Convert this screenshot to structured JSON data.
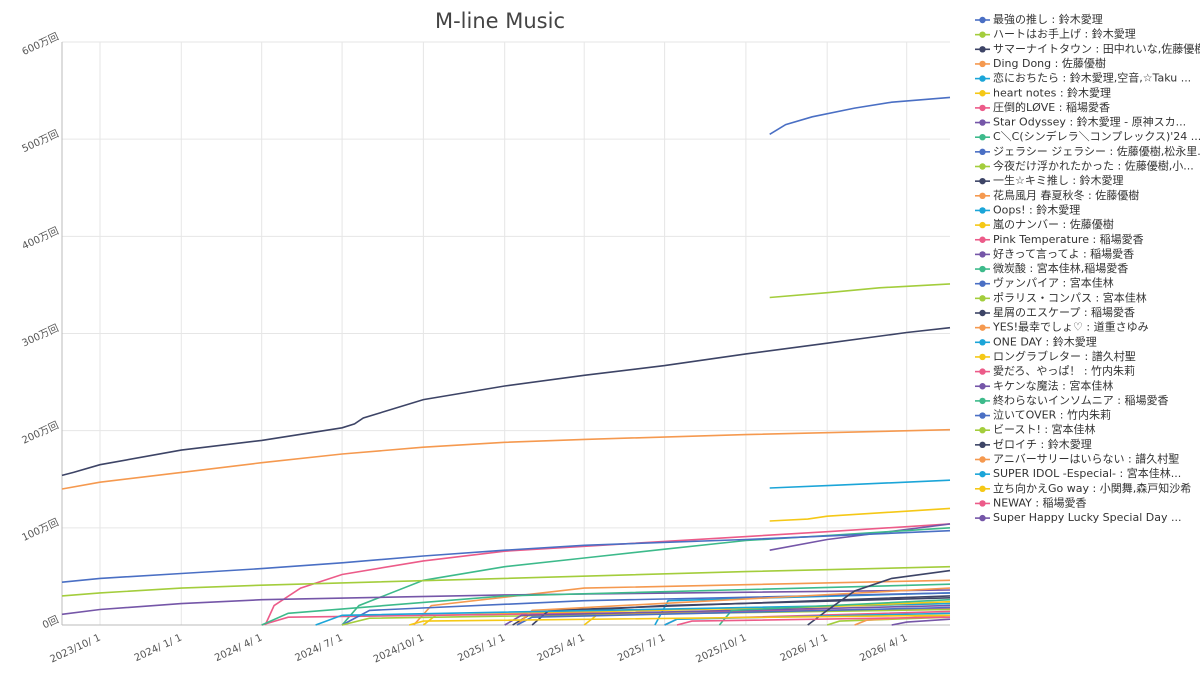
{
  "chart_data": {
    "type": "line",
    "title": "M-line Music",
    "xlim": [
      "2023-08-19",
      "2026-05-20"
    ],
    "xticks": [
      {
        "value": "2023-10-01",
        "label": "2023/10/ 1"
      },
      {
        "value": "2024-01-01",
        "label": "2024/ 1/ 1"
      },
      {
        "value": "2024-04-01",
        "label": "2024/ 4/ 1"
      },
      {
        "value": "2024-07-01",
        "label": "2024/ 7/ 1"
      },
      {
        "value": "2024-10-01",
        "label": "2024/10/ 1"
      },
      {
        "value": "2025-01-01",
        "label": "2025/ 1/ 1"
      },
      {
        "value": "2025-04-01",
        "label": "2025/ 4/ 1"
      },
      {
        "value": "2025-07-01",
        "label": "2025/ 7/ 1"
      },
      {
        "value": "2025-10-01",
        "label": "2025/10/ 1"
      },
      {
        "value": "2026-01-01",
        "label": "2026/ 1/ 1"
      },
      {
        "value": "2026-04-01",
        "label": "2026/ 4/ 1"
      }
    ],
    "ylim": [
      0,
      6000000
    ],
    "yticks": [
      {
        "value": 0,
        "label": "0回"
      },
      {
        "value": 1000000,
        "label": "100万回"
      },
      {
        "value": 2000000,
        "label": "200万回"
      },
      {
        "value": 3000000,
        "label": "300万回"
      },
      {
        "value": 4000000,
        "label": "400万回"
      },
      {
        "value": 5000000,
        "label": "500万回"
      },
      {
        "value": 6000000,
        "label": "600万回"
      }
    ],
    "grid": true,
    "legend": "right",
    "series": [
      {
        "name": "最強の推し : 鈴木愛理",
        "color": "#4a6fc4",
        "x": [
          "2025-10-28",
          "2025-11-15",
          "2025-12-15",
          "2026-02-01",
          "2026-03-15",
          "2026-05-20"
        ],
        "values": [
          5050000,
          5150000,
          5230000,
          5320000,
          5380000,
          5430000
        ]
      },
      {
        "name": "ハートはお手上げ : 鈴木愛理",
        "color": "#a3cd3c",
        "x": [
          "2025-10-28",
          "2026-01-01",
          "2026-03-01",
          "2026-05-20"
        ],
        "values": [
          3370000,
          3420000,
          3470000,
          3510000
        ]
      },
      {
        "name": "サマーナイトタウン : 田中れいな,佐藤優樹",
        "color": "#3d4466",
        "x": [
          "2023-08-19",
          "2023-09-01",
          "2023-10-01",
          "2024-01-01",
          "2024-04-01",
          "2024-07-01",
          "2024-07-15",
          "2024-07-25",
          "2024-10-01",
          "2025-01-01",
          "2025-04-01",
          "2025-07-01",
          "2025-10-01",
          "2026-01-01",
          "2026-04-01",
          "2026-05-20"
        ],
        "values": [
          1540000,
          1570000,
          1650000,
          1800000,
          1900000,
          2030000,
          2070000,
          2130000,
          2320000,
          2460000,
          2570000,
          2670000,
          2790000,
          2900000,
          3010000,
          3060000
        ]
      },
      {
        "name": "Ding Dong : 佐藤優樹",
        "color": "#f5994f",
        "x": [
          "2023-08-19",
          "2023-10-01",
          "2024-01-01",
          "2024-04-01",
          "2024-07-01",
          "2024-10-01",
          "2025-01-01",
          "2025-04-01",
          "2025-10-01",
          "2026-05-20"
        ],
        "values": [
          1400000,
          1470000,
          1570000,
          1670000,
          1760000,
          1830000,
          1880000,
          1910000,
          1960000,
          2010000
        ]
      },
      {
        "name": "恋におちたら : 鈴木愛理,空音,☆Taku ...",
        "color": "#1ba5d8",
        "x": [
          "2025-10-28",
          "2026-01-15",
          "2026-05-20"
        ],
        "values": [
          1410000,
          1440000,
          1490000
        ]
      },
      {
        "name": "heart notes : 鈴木愛理",
        "color": "#f5c816",
        "x": [
          "2025-10-28",
          "2025-12-10",
          "2026-01-01",
          "2026-05-20"
        ],
        "values": [
          1070000,
          1090000,
          1120000,
          1200000
        ]
      },
      {
        "name": "圧倒的LØVE : 稲場愛香",
        "color": "#ec5b89",
        "x": [
          "2024-04-05",
          "2024-04-15",
          "2024-05-15",
          "2024-07-01",
          "2024-10-01",
          "2025-01-01",
          "2025-07-01",
          "2026-01-01",
          "2026-05-20"
        ],
        "values": [
          0,
          200000,
          380000,
          520000,
          660000,
          760000,
          860000,
          960000,
          1040000
        ]
      },
      {
        "name": "Star Odyssey : 鈴木愛理 - 原神スカ...",
        "color": "#7556a8",
        "x": [
          "2025-10-28",
          "2026-01-01",
          "2026-05-20"
        ],
        "values": [
          770000,
          880000,
          1040000
        ]
      },
      {
        "name": "C＼C(シンデレラ＼コンプレックス)'24 ...",
        "color": "#3dba8b",
        "x": [
          "2024-07-01",
          "2024-07-20",
          "2024-10-01",
          "2025-01-01",
          "2025-04-01",
          "2025-07-01",
          "2025-10-01",
          "2026-01-01",
          "2026-05-20"
        ],
        "values": [
          0,
          200000,
          460000,
          600000,
          690000,
          780000,
          870000,
          920000,
          1000000
        ]
      },
      {
        "name": "ジェラシー ジェラシー : 佐藤優樹,松永里...",
        "color": "#4a6fc4",
        "x": [
          "2023-08-19",
          "2023-10-01",
          "2024-01-01",
          "2024-04-01",
          "2024-07-01",
          "2024-10-01",
          "2025-01-01",
          "2025-04-01",
          "2025-10-01",
          "2026-05-20"
        ],
        "values": [
          440000,
          480000,
          530000,
          580000,
          640000,
          710000,
          770000,
          820000,
          880000,
          970000
        ]
      },
      {
        "name": "今夜だけ浮かれたかった : 佐藤優樹,小...",
        "color": "#a3cd3c",
        "x": [
          "2023-08-19",
          "2023-10-01",
          "2024-01-01",
          "2024-04-01",
          "2025-01-01",
          "2025-10-01",
          "2026-05-20"
        ],
        "values": [
          300000,
          330000,
          380000,
          410000,
          480000,
          550000,
          600000
        ]
      },
      {
        "name": "一生☆キミ推し : 鈴木愛理",
        "color": "#3d4466",
        "x": [
          "2025-01-10",
          "2025-02-01",
          "2025-07-01",
          "2026-05-20"
        ],
        "values": [
          0,
          120000,
          200000,
          280000
        ]
      },
      {
        "name": "花鳥風月 春夏秋冬 : 佐藤優樹",
        "color": "#f5994f",
        "x": [
          "2024-09-20",
          "2024-10-10",
          "2025-04-01",
          "2026-05-20"
        ],
        "values": [
          0,
          200000,
          380000,
          460000
        ]
      },
      {
        "name": "Oops! : 鈴木愛理",
        "color": "#1ba5d8",
        "x": [
          "2025-06-20",
          "2025-07-05",
          "2026-05-20"
        ],
        "values": [
          0,
          250000,
          330000
        ]
      },
      {
        "name": "嵐のナンバー : 佐藤優樹",
        "color": "#f5c816",
        "x": [
          "2024-10-01",
          "2024-10-15",
          "2026-05-20"
        ],
        "values": [
          0,
          100000,
          220000
        ]
      },
      {
        "name": "Pink Temperature : 稲場愛香",
        "color": "#ec5b89",
        "x": [
          "2024-04-01",
          "2024-05-01",
          "2026-05-20"
        ],
        "values": [
          0,
          80000,
          170000
        ]
      },
      {
        "name": "好きって言ってよ : 稲場愛香",
        "color": "#7556a8",
        "x": [
          "2023-08-19",
          "2023-10-01",
          "2024-01-01",
          "2024-04-01",
          "2025-01-01",
          "2026-05-20"
        ],
        "values": [
          110000,
          160000,
          220000,
          260000,
          310000,
          360000
        ]
      },
      {
        "name": "微炭酸 : 宮本佳林,稲場愛香",
        "color": "#3dba8b",
        "x": [
          "2024-04-01",
          "2024-05-01",
          "2025-01-01",
          "2026-05-20"
        ],
        "values": [
          0,
          120000,
          300000,
          420000
        ]
      },
      {
        "name": "ヴァンパイア : 宮本佳林",
        "color": "#4a6fc4",
        "x": [
          "2024-07-01",
          "2024-08-01",
          "2025-04-01",
          "2026-05-20"
        ],
        "values": [
          0,
          150000,
          250000,
          330000
        ]
      },
      {
        "name": "ポラリス・コンパス : 宮本佳林",
        "color": "#a3cd3c",
        "x": [
          "2024-07-01",
          "2024-08-01",
          "2026-05-20"
        ],
        "values": [
          0,
          70000,
          160000
        ]
      },
      {
        "name": "星屑のエスケープ : 稲場愛香",
        "color": "#3d4466",
        "x": [
          "2025-02-01",
          "2025-02-20",
          "2026-05-20"
        ],
        "values": [
          0,
          150000,
          300000
        ]
      },
      {
        "name": "YES!最幸でしょ♡ : 道重さゆみ",
        "color": "#f5994f",
        "x": [
          "2025-01-15",
          "2025-02-01",
          "2026-05-20"
        ],
        "values": [
          0,
          150000,
          380000
        ]
      },
      {
        "name": "ONE DAY : 鈴木愛理",
        "color": "#1ba5d8",
        "x": [
          "2024-06-01",
          "2024-07-01",
          "2026-05-20"
        ],
        "values": [
          0,
          100000,
          220000
        ]
      },
      {
        "name": "ロングラブレター : 譜久村聖",
        "color": "#f5c816",
        "x": [
          "2025-04-01",
          "2025-04-15",
          "2026-05-20"
        ],
        "values": [
          0,
          100000,
          240000
        ]
      },
      {
        "name": "愛だろ、やっぱ！ : 竹内朱莉",
        "color": "#ec5b89",
        "x": [
          "2025-07-01",
          "2025-07-15",
          "2026-05-20"
        ],
        "values": [
          0,
          60000,
          140000
        ]
      },
      {
        "name": "キケンな魔法 : 宮本佳林",
        "color": "#7556a8",
        "x": [
          "2025-01-01",
          "2025-01-20",
          "2026-05-20"
        ],
        "values": [
          0,
          100000,
          200000
        ]
      },
      {
        "name": "終わらないインソムニア : 稲場愛香",
        "color": "#3dba8b",
        "x": [
          "2025-09-01",
          "2025-09-15",
          "2026-05-20"
        ],
        "values": [
          0,
          150000,
          260000
        ]
      },
      {
        "name": "泣いてOVER : 竹内朱莉",
        "color": "#4a6fc4",
        "x": [
          "2025-01-15",
          "2025-02-01",
          "2026-05-20"
        ],
        "values": [
          0,
          80000,
          180000
        ]
      },
      {
        "name": "ビースト! : 宮本佳林",
        "color": "#a3cd3c",
        "x": [
          "2026-01-01",
          "2026-01-15",
          "2026-05-20"
        ],
        "values": [
          0,
          40000,
          80000
        ]
      },
      {
        "name": "ゼロイチ : 鈴木愛理",
        "color": "#3d4466",
        "x": [
          "2025-12-10",
          "2026-01-01",
          "2026-02-01",
          "2026-03-15",
          "2026-05-20"
        ],
        "values": [
          0,
          150000,
          350000,
          480000,
          560000
        ]
      },
      {
        "name": "アニバーサリーはいらない : 譜久村聖",
        "color": "#f5994f",
        "x": [
          "2026-02-01",
          "2026-02-15",
          "2026-05-20"
        ],
        "values": [
          0,
          50000,
          100000
        ]
      },
      {
        "name": "SUPER IDOL -Especial- : 宮本佳林...",
        "color": "#1ba5d8",
        "x": [
          "2025-07-01",
          "2025-07-15",
          "2026-05-20"
        ],
        "values": [
          0,
          60000,
          120000
        ]
      },
      {
        "name": "立ち向かえGo way : 小関舞,森戸知沙希",
        "color": "#f5c816",
        "x": [
          "2024-09-15",
          "2024-10-01",
          "2026-05-20"
        ],
        "values": [
          0,
          40000,
          100000
        ]
      },
      {
        "name": "NEWAY : 稲場愛香",
        "color": "#ec5b89",
        "x": [
          "2025-07-15",
          "2025-08-01",
          "2026-05-20"
        ],
        "values": [
          0,
          40000,
          80000
        ]
      },
      {
        "name": "Super Happy Lucky Special Day ...",
        "color": "#7556a8",
        "x": [
          "2026-03-15",
          "2026-04-01",
          "2026-05-20"
        ],
        "values": [
          0,
          30000,
          60000
        ]
      }
    ]
  }
}
